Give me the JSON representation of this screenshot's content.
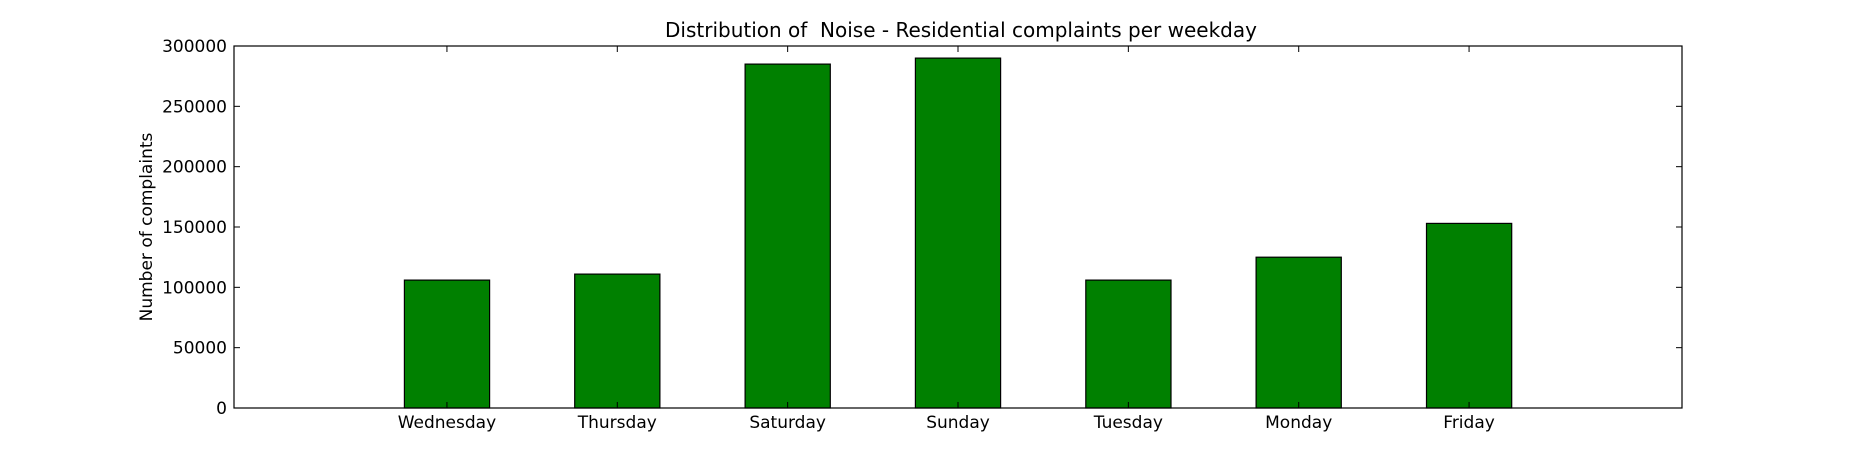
{
  "chart_data": {
    "type": "bar",
    "title": "Distribution of  Noise - Residential complaints per weekday",
    "xlabel": "",
    "ylabel": "Number of complaints",
    "categories": [
      "Wednesday",
      "Thursday",
      "Saturday",
      "Sunday",
      "Tuesday",
      "Monday",
      "Friday"
    ],
    "values": [
      106000,
      111000,
      285000,
      290000,
      106000,
      125000,
      153000
    ],
    "ylim": [
      0,
      300000
    ],
    "yticks": [
      0,
      50000,
      100000,
      150000,
      200000,
      250000,
      300000
    ],
    "ytick_labels": [
      "0",
      "50000",
      "100000",
      "150000",
      "200000",
      "250000",
      "300000"
    ],
    "bar_color": "#008000",
    "grid": false,
    "legend": "none"
  }
}
